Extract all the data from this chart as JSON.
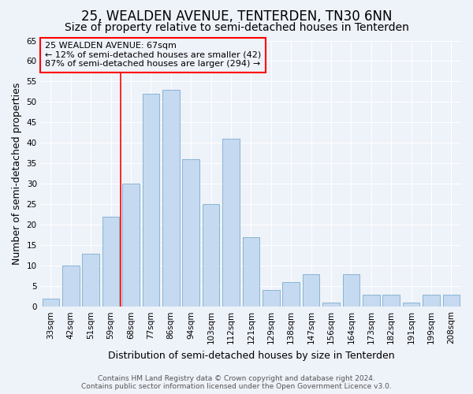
{
  "title": "25, WEALDEN AVENUE, TENTERDEN, TN30 6NN",
  "subtitle": "Size of property relative to semi-detached houses in Tenterden",
  "xlabel": "Distribution of semi-detached houses by size in Tenterden",
  "ylabel": "Number of semi-detached properties",
  "categories": [
    "33sqm",
    "42sqm",
    "51sqm",
    "59sqm",
    "68sqm",
    "77sqm",
    "86sqm",
    "94sqm",
    "103sqm",
    "112sqm",
    "121sqm",
    "129sqm",
    "138sqm",
    "147sqm",
    "156sqm",
    "164sqm",
    "173sqm",
    "182sqm",
    "191sqm",
    "199sqm",
    "208sqm"
  ],
  "values": [
    2,
    10,
    13,
    22,
    30,
    52,
    53,
    36,
    25,
    41,
    17,
    4,
    6,
    8,
    1,
    8,
    3,
    3,
    1,
    3,
    3
  ],
  "bar_color": "#c5d9f0",
  "bar_edge_color": "#7aadce",
  "vline_index": 4,
  "vline_color": "red",
  "ylim": [
    0,
    65
  ],
  "yticks": [
    0,
    5,
    10,
    15,
    20,
    25,
    30,
    35,
    40,
    45,
    50,
    55,
    60,
    65
  ],
  "annotation_title": "25 WEALDEN AVENUE: 67sqm",
  "annotation_line1": "← 12% of semi-detached houses are smaller (42)",
  "annotation_line2": "87% of semi-detached houses are larger (294) →",
  "footer1": "Contains HM Land Registry data © Crown copyright and database right 2024.",
  "footer2": "Contains public sector information licensed under the Open Government Licence v3.0.",
  "bg_color": "#eef2f9",
  "grid_color": "#ffffff",
  "title_fontsize": 12,
  "subtitle_fontsize": 10,
  "ylabel_fontsize": 9,
  "xlabel_fontsize": 9,
  "tick_fontsize": 7.5,
  "annotation_fontsize": 8,
  "footer_fontsize": 6.5
}
